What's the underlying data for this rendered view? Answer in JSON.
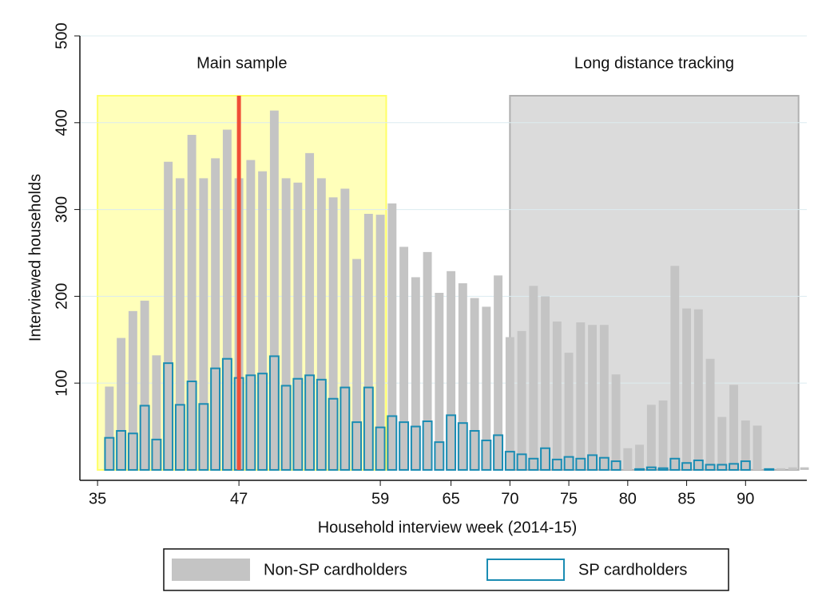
{
  "chart_data": {
    "type": "bar",
    "ylabel": "Interviewed households",
    "xlabel": "Household interview week (2014-15)",
    "x": [
      36,
      37,
      38,
      39,
      40,
      41,
      42,
      43,
      44,
      45,
      46,
      47,
      48,
      49,
      50,
      51,
      52,
      53,
      54,
      55,
      56,
      57,
      58,
      59,
      60,
      61,
      62,
      63,
      64,
      65,
      66,
      67,
      68,
      69,
      70,
      71,
      72,
      73,
      74,
      75,
      76,
      77,
      78,
      79,
      80,
      81,
      82,
      83,
      84,
      85,
      86,
      87,
      88,
      89,
      90,
      91,
      92,
      93,
      94,
      95
    ],
    "series": [
      {
        "name": "Non-SP cardholders",
        "color": "#c4c4c4",
        "values": [
          96,
          152,
          183,
          195,
          132,
          355,
          336,
          386,
          336,
          359,
          392,
          336,
          357,
          344,
          414,
          336,
          331,
          365,
          336,
          314,
          324,
          243,
          295,
          294,
          307,
          257,
          222,
          251,
          204,
          229,
          215,
          198,
          188,
          224,
          153,
          160,
          212,
          200,
          171,
          135,
          170,
          167,
          167,
          110,
          25,
          29,
          75,
          80,
          235,
          186,
          185,
          128,
          61,
          98,
          57,
          51,
          0,
          2,
          3,
          3
        ]
      },
      {
        "name": "SP cardholders",
        "color": "#1a8cb3",
        "values": [
          37,
          45,
          42,
          74,
          35,
          123,
          75,
          102,
          76,
          117,
          128,
          106,
          109,
          111,
          131,
          97,
          105,
          109,
          104,
          82,
          95,
          55,
          95,
          49,
          62,
          55,
          50,
          56,
          32,
          63,
          54,
          45,
          34,
          40,
          21,
          18,
          13,
          25,
          12,
          15,
          13,
          17,
          14,
          10,
          0,
          1,
          3,
          2,
          13,
          8,
          11,
          6,
          6,
          7,
          10,
          0,
          1,
          0,
          0,
          0
        ]
      }
    ],
    "regions": [
      {
        "label": "Main sample",
        "from": 35,
        "to": 59.5,
        "color": "#ffff66"
      },
      {
        "label": "Long distance tracking",
        "from": 70,
        "to": 94.5,
        "color": "#b0b0b0"
      }
    ],
    "vline": {
      "x": 47,
      "color": "#f04e37"
    },
    "xlim": [
      33.5,
      95.2
    ],
    "ylim": [
      -12,
      500
    ],
    "xticks": [
      35,
      47,
      59,
      65,
      70,
      75,
      80,
      85,
      90
    ],
    "yticks": [
      100,
      200,
      300,
      400,
      500
    ],
    "grid": true
  }
}
